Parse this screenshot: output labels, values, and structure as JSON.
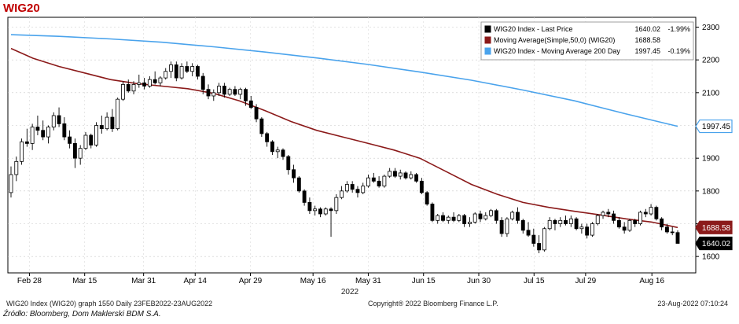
{
  "title": "WIG20",
  "chart_data": {
    "type": "candlestick",
    "title": "WIG20",
    "xlabel": "2022",
    "ylim": [
      1550,
      2330
    ],
    "yticks": [
      1600,
      1700,
      1800,
      1900,
      2000,
      2100,
      2200,
      2300
    ],
    "xticks": [
      {
        "date": "2022-02-28",
        "label": "Feb 28"
      },
      {
        "date": "2022-03-15",
        "label": "Mar 15"
      },
      {
        "date": "2022-03-31",
        "label": "Mar 31"
      },
      {
        "date": "2022-04-14",
        "label": "Apr 14"
      },
      {
        "date": "2022-04-29",
        "label": "Apr 29"
      },
      {
        "date": "2022-05-16",
        "label": "May 16"
      },
      {
        "date": "2022-05-31",
        "label": "May 31"
      },
      {
        "date": "2022-06-15",
        "label": "Jun 15"
      },
      {
        "date": "2022-06-30",
        "label": "Jun 30"
      },
      {
        "date": "2022-07-15",
        "label": "Jul 15"
      },
      {
        "date": "2022-07-29",
        "label": "Jul 29"
      },
      {
        "date": "2022-08-16",
        "label": "Aug 16"
      }
    ],
    "legend": [
      {
        "label": "WIG20 Index - Last Price",
        "value": "1640.02",
        "change": "-1.99%",
        "color": "#000000"
      },
      {
        "label": "Moving Average(Simple,50,0)  (WIG20)",
        "value": "1688.58",
        "change": "",
        "color": "#8b1a1a"
      },
      {
        "label": "WIG20 Index - Moving Average 200 Day",
        "value": "1997.45",
        "change": "-0.19%",
        "color": "#4aa3ec"
      }
    ],
    "legend_position": "top-right",
    "series": [
      {
        "name": "WIG20 Index - Last Price",
        "kind": "candles",
        "color": "#000000",
        "ohlc": [
          [
            1795,
            1875,
            1780,
            1850
          ],
          [
            1850,
            1905,
            1830,
            1890
          ],
          [
            1890,
            1960,
            1880,
            1950
          ],
          [
            1950,
            1990,
            1935,
            1945
          ],
          [
            1945,
            2005,
            1925,
            1995
          ],
          [
            1995,
            2030,
            1970,
            1985
          ],
          [
            1985,
            2015,
            1955,
            1965
          ],
          [
            1965,
            2000,
            1945,
            1995
          ],
          [
            1995,
            2040,
            1985,
            2030
          ],
          [
            2030,
            2055,
            1995,
            2005
          ],
          [
            2005,
            2025,
            1955,
            1965
          ],
          [
            1965,
            1985,
            1930,
            1945
          ],
          [
            1945,
            1960,
            1870,
            1900
          ],
          [
            1900,
            1940,
            1880,
            1930
          ],
          [
            1930,
            1980,
            1925,
            1970
          ],
          [
            1970,
            1975,
            1930,
            1940
          ],
          [
            1940,
            2010,
            1935,
            2000
          ],
          [
            2000,
            2030,
            1975,
            1990
          ],
          [
            1990,
            2040,
            1985,
            2025
          ],
          [
            2025,
            2050,
            1980,
            1990
          ],
          [
            1990,
            2085,
            1985,
            2080
          ],
          [
            2080,
            2135,
            2075,
            2125
          ],
          [
            2125,
            2140,
            2100,
            2105
          ],
          [
            2105,
            2135,
            2095,
            2125
          ],
          [
            2125,
            2155,
            2115,
            2130
          ],
          [
            2130,
            2145,
            2110,
            2120
          ],
          [
            2120,
            2150,
            2115,
            2140
          ],
          [
            2140,
            2165,
            2125,
            2130
          ],
          [
            2130,
            2150,
            2120,
            2145
          ],
          [
            2145,
            2175,
            2140,
            2165
          ],
          [
            2165,
            2195,
            2145,
            2185
          ],
          [
            2185,
            2195,
            2135,
            2145
          ],
          [
            2145,
            2190,
            2140,
            2180
          ],
          [
            2180,
            2195,
            2160,
            2165
          ],
          [
            2165,
            2190,
            2150,
            2180
          ],
          [
            2180,
            2185,
            2140,
            2150
          ],
          [
            2150,
            2160,
            2095,
            2110
          ],
          [
            2110,
            2125,
            2080,
            2090
          ],
          [
            2090,
            2110,
            2075,
            2100
          ],
          [
            2100,
            2130,
            2090,
            2120
          ],
          [
            2120,
            2130,
            2085,
            2095
          ],
          [
            2095,
            2115,
            2090,
            2110
          ],
          [
            2110,
            2120,
            2090,
            2095
          ],
          [
            2095,
            2115,
            2080,
            2110
          ],
          [
            2110,
            2115,
            2060,
            2075
          ],
          [
            2075,
            2090,
            2050,
            2055
          ],
          [
            2055,
            2065,
            2010,
            2020
          ],
          [
            2020,
            2025,
            1965,
            1975
          ],
          [
            1975,
            1980,
            1935,
            1950
          ],
          [
            1950,
            1955,
            1910,
            1920
          ],
          [
            1920,
            1935,
            1900,
            1925
          ],
          [
            1925,
            1930,
            1895,
            1905
          ],
          [
            1905,
            1910,
            1850,
            1865
          ],
          [
            1865,
            1880,
            1825,
            1840
          ],
          [
            1840,
            1845,
            1795,
            1800
          ],
          [
            1800,
            1805,
            1755,
            1765
          ],
          [
            1765,
            1780,
            1730,
            1740
          ],
          [
            1740,
            1755,
            1725,
            1745
          ],
          [
            1745,
            1750,
            1720,
            1730
          ],
          [
            1730,
            1750,
            1725,
            1745
          ],
          [
            1745,
            1750,
            1660,
            1740
          ],
          [
            1740,
            1790,
            1730,
            1780
          ],
          [
            1780,
            1815,
            1775,
            1800
          ],
          [
            1800,
            1830,
            1795,
            1820
          ],
          [
            1820,
            1830,
            1795,
            1805
          ],
          [
            1805,
            1815,
            1780,
            1795
          ],
          [
            1795,
            1825,
            1790,
            1815
          ],
          [
            1815,
            1850,
            1810,
            1840
          ],
          [
            1840,
            1855,
            1825,
            1830
          ],
          [
            1830,
            1845,
            1810,
            1815
          ],
          [
            1815,
            1850,
            1810,
            1845
          ],
          [
            1845,
            1870,
            1840,
            1860
          ],
          [
            1860,
            1870,
            1840,
            1845
          ],
          [
            1845,
            1865,
            1835,
            1855
          ],
          [
            1855,
            1860,
            1835,
            1840
          ],
          [
            1840,
            1860,
            1835,
            1850
          ],
          [
            1850,
            1855,
            1825,
            1830
          ],
          [
            1830,
            1840,
            1790,
            1795
          ],
          [
            1795,
            1800,
            1755,
            1760
          ],
          [
            1760,
            1765,
            1705,
            1710
          ],
          [
            1710,
            1730,
            1700,
            1725
          ],
          [
            1725,
            1735,
            1705,
            1710
          ],
          [
            1710,
            1725,
            1700,
            1720
          ],
          [
            1720,
            1735,
            1705,
            1710
          ],
          [
            1710,
            1730,
            1705,
            1725
          ],
          [
            1725,
            1730,
            1690,
            1700
          ],
          [
            1700,
            1720,
            1690,
            1705
          ],
          [
            1705,
            1735,
            1700,
            1730
          ],
          [
            1730,
            1740,
            1705,
            1715
          ],
          [
            1715,
            1735,
            1710,
            1725
          ],
          [
            1725,
            1745,
            1720,
            1740
          ],
          [
            1740,
            1745,
            1700,
            1710
          ],
          [
            1710,
            1720,
            1660,
            1670
          ],
          [
            1670,
            1720,
            1660,
            1715
          ],
          [
            1715,
            1740,
            1710,
            1735
          ],
          [
            1735,
            1750,
            1700,
            1710
          ],
          [
            1710,
            1715,
            1670,
            1680
          ],
          [
            1680,
            1705,
            1660,
            1665
          ],
          [
            1665,
            1685,
            1630,
            1640
          ],
          [
            1640,
            1665,
            1610,
            1620
          ],
          [
            1620,
            1690,
            1615,
            1685
          ],
          [
            1685,
            1720,
            1680,
            1710
          ],
          [
            1710,
            1715,
            1680,
            1700
          ],
          [
            1700,
            1720,
            1690,
            1710
          ],
          [
            1710,
            1725,
            1695,
            1700
          ],
          [
            1700,
            1725,
            1690,
            1715
          ],
          [
            1715,
            1720,
            1680,
            1685
          ],
          [
            1685,
            1700,
            1670,
            1690
          ],
          [
            1690,
            1700,
            1655,
            1665
          ],
          [
            1665,
            1705,
            1660,
            1700
          ],
          [
            1700,
            1730,
            1695,
            1725
          ],
          [
            1725,
            1740,
            1715,
            1735
          ],
          [
            1735,
            1745,
            1720,
            1730
          ],
          [
            1730,
            1740,
            1700,
            1710
          ],
          [
            1710,
            1720,
            1685,
            1690
          ],
          [
            1690,
            1705,
            1670,
            1680
          ],
          [
            1680,
            1715,
            1675,
            1710
          ],
          [
            1710,
            1715,
            1690,
            1700
          ],
          [
            1700,
            1740,
            1695,
            1735
          ],
          [
            1735,
            1745,
            1720,
            1730
          ],
          [
            1730,
            1760,
            1725,
            1750
          ],
          [
            1750,
            1755,
            1710,
            1715
          ],
          [
            1715,
            1720,
            1680,
            1690
          ],
          [
            1690,
            1700,
            1670,
            1675
          ],
          [
            1675,
            1690,
            1665,
            1673
          ],
          [
            1673,
            1680,
            1640,
            1640
          ]
        ]
      },
      {
        "name": "Moving Average(Simple,50,0)  (WIG20)",
        "kind": "line",
        "color": "#8b1a1a",
        "points": [
          [
            "2022-02-23",
            2235
          ],
          [
            "2022-03-01",
            2205
          ],
          [
            "2022-03-08",
            2180
          ],
          [
            "2022-03-15",
            2160
          ],
          [
            "2022-03-22",
            2140
          ],
          [
            "2022-03-29",
            2128
          ],
          [
            "2022-04-05",
            2120
          ],
          [
            "2022-04-12",
            2112
          ],
          [
            "2022-04-19",
            2098
          ],
          [
            "2022-04-26",
            2075
          ],
          [
            "2022-05-03",
            2045
          ],
          [
            "2022-05-10",
            2012
          ],
          [
            "2022-05-17",
            1985
          ],
          [
            "2022-05-24",
            1965
          ],
          [
            "2022-05-31",
            1945
          ],
          [
            "2022-06-07",
            1925
          ],
          [
            "2022-06-14",
            1900
          ],
          [
            "2022-06-21",
            1860
          ],
          [
            "2022-06-28",
            1820
          ],
          [
            "2022-07-05",
            1790
          ],
          [
            "2022-07-12",
            1765
          ],
          [
            "2022-07-19",
            1750
          ],
          [
            "2022-07-26",
            1738
          ],
          [
            "2022-08-02",
            1727
          ],
          [
            "2022-08-09",
            1715
          ],
          [
            "2022-08-16",
            1705
          ],
          [
            "2022-08-23",
            1688.58
          ]
        ]
      },
      {
        "name": "WIG20 Index - Moving Average 200 Day",
        "kind": "line",
        "color": "#4aa3ec",
        "points": [
          [
            "2022-02-23",
            2277
          ],
          [
            "2022-03-08",
            2272
          ],
          [
            "2022-03-22",
            2264
          ],
          [
            "2022-04-05",
            2254
          ],
          [
            "2022-04-19",
            2240
          ],
          [
            "2022-05-03",
            2224
          ],
          [
            "2022-05-17",
            2206
          ],
          [
            "2022-05-31",
            2186
          ],
          [
            "2022-06-14",
            2163
          ],
          [
            "2022-06-28",
            2138
          ],
          [
            "2022-07-12",
            2108
          ],
          [
            "2022-07-26",
            2075
          ],
          [
            "2022-08-09",
            2035
          ],
          [
            "2022-08-23",
            1997.45
          ]
        ]
      }
    ],
    "last_values": [
      {
        "value": "1997.45",
        "color": "#4aa3ec",
        "text_color": "#000000",
        "style": "outline"
      },
      {
        "value": "1688.58",
        "color": "#8b1a1a",
        "text_color": "#ffffff",
        "style": "filled"
      },
      {
        "value": "1640.02",
        "color": "#000000",
        "text_color": "#ffffff",
        "style": "filled"
      }
    ]
  },
  "footer": {
    "left": "WIG20 Index (WIG20) graph 1550  Daily 23FEB2022-23AUG2022",
    "center": "Copyright® 2022 Bloomberg Finance L.P.",
    "right": "23-Aug-2022 07:10:24"
  },
  "source": "Źródło: Bloomberg, Dom Maklerski BDM S.A."
}
